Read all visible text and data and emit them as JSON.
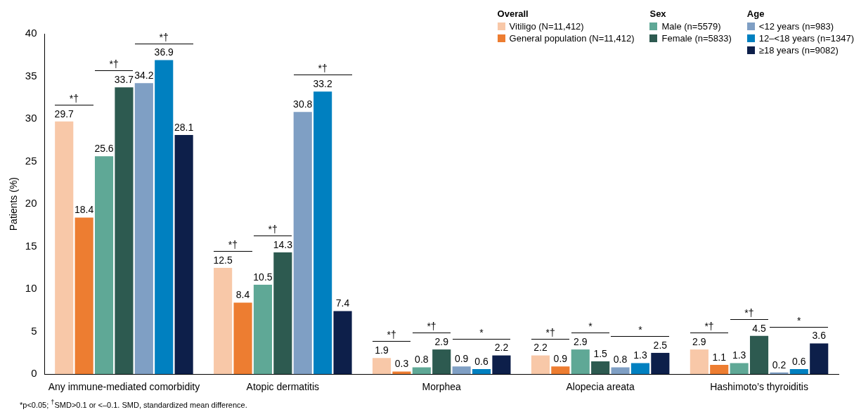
{
  "chart_data": {
    "type": "bar",
    "ylabel": "Patients (%)",
    "categories": [
      "Any immune-mediated comorbidity",
      "Atopic dermatitis",
      "Morphea",
      "Alopecia areata",
      "Hashimoto’s thyroiditis"
    ],
    "series": [
      {
        "name": "Vitiligo (N=11,412)",
        "color": "#f8c8a8",
        "values": [
          29.7,
          12.5,
          1.9,
          2.2,
          2.9
        ]
      },
      {
        "name": "General population (N=11,412)",
        "color": "#ed7d31",
        "values": [
          18.4,
          8.4,
          0.3,
          0.9,
          1.1
        ]
      },
      {
        "name": "Male (n=5579)",
        "color": "#5fa896",
        "values": [
          25.6,
          10.5,
          0.8,
          2.9,
          1.3
        ]
      },
      {
        "name": "Female (n=5833)",
        "color": "#2d5a50",
        "values": [
          33.7,
          14.3,
          2.9,
          1.5,
          4.5
        ]
      },
      {
        "name": "<12 years (n=983)",
        "color": "#7f9fc4",
        "values": [
          34.2,
          30.8,
          0.9,
          0.8,
          0.2
        ]
      },
      {
        "name": "12–<18 years (n=1347)",
        "color": "#0080c0",
        "values": [
          36.9,
          33.2,
          0.6,
          1.3,
          0.6
        ]
      },
      {
        "name": "≥18 years (n=9082)",
        "color": "#0d1f4a",
        "values": [
          28.1,
          7.4,
          2.2,
          2.5,
          3.6
        ]
      }
    ],
    "ylim": [
      0,
      40
    ],
    "yticks": [
      0,
      5,
      10,
      15,
      20,
      25,
      30,
      35,
      40
    ],
    "grid": false,
    "data_labels": true,
    "legend": "top right",
    "annotations": [
      "Overall",
      "Sex",
      "Age",
      "*†",
      "*†",
      "*†",
      "*†",
      "*†",
      "*†",
      "*†",
      "*†",
      "*",
      "*†",
      "*",
      "*",
      "*†",
      "*†",
      "*",
      "*p<0.05; $^{†}$SMD>0.1 or <–0.1. SMD, standardized mean difference."
    ]
  }
}
